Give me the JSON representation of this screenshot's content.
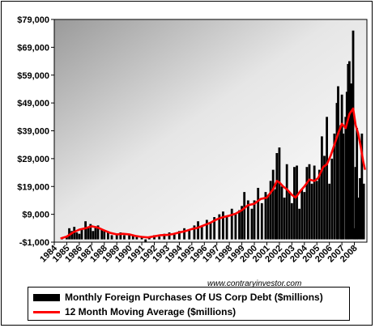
{
  "chart_data": {
    "type": "bar",
    "y_ticks": [
      "$79,000",
      "$69,000",
      "$59,000",
      "$49,000",
      "$39,000",
      "$29,000",
      "$19,000",
      "$9,000",
      "-$1,000"
    ],
    "ylim": [
      -1000,
      79000
    ],
    "x_ticks": [
      "1984",
      "1985",
      "1986",
      "1987",
      "1988",
      "1989",
      "1990",
      "1991",
      "1992",
      "1993",
      "1994",
      "1995",
      "1996",
      "1997",
      "1998",
      "1999",
      "2000",
      "2001",
      "2002",
      "2003",
      "2004",
      "2005",
      "2006",
      "2007",
      "2008"
    ],
    "xlim": [
      1984.0,
      2009.0
    ],
    "colors": {
      "bars": "#000000",
      "moving_average": "#ff0000"
    },
    "series": [
      {
        "name": "Monthly Foreign Purchases Of US Corp Debt ($millions)",
        "style": "bar",
        "points": [
          [
            1984.6,
            600
          ],
          [
            1985.0,
            1000
          ],
          [
            1985.2,
            4000
          ],
          [
            1985.4,
            3000
          ],
          [
            1985.6,
            4500
          ],
          [
            1985.8,
            2500
          ],
          [
            1986.0,
            2000
          ],
          [
            1986.2,
            3500
          ],
          [
            1986.5,
            6500
          ],
          [
            1986.7,
            4500
          ],
          [
            1986.9,
            5500
          ],
          [
            1987.1,
            3000
          ],
          [
            1987.3,
            4500
          ],
          [
            1987.5,
            5000
          ],
          [
            1987.8,
            3500
          ],
          [
            1988.0,
            3000
          ],
          [
            1988.3,
            2500
          ],
          [
            1988.6,
            1500
          ],
          [
            1989.0,
            2000
          ],
          [
            1989.3,
            2500
          ],
          [
            1989.6,
            1500
          ],
          [
            1990.0,
            2000
          ],
          [
            1990.3,
            1500
          ],
          [
            1990.6,
            1000
          ],
          [
            1991.0,
            1200
          ],
          [
            1991.3,
            -1000
          ],
          [
            1991.6,
            800
          ],
          [
            1992.0,
            1500
          ],
          [
            1992.4,
            1000
          ],
          [
            1992.8,
            2000
          ],
          [
            1993.2,
            2500
          ],
          [
            1993.6,
            2000
          ],
          [
            1994.0,
            3000
          ],
          [
            1994.4,
            4000
          ],
          [
            1994.8,
            3500
          ],
          [
            1995.2,
            5000
          ],
          [
            1995.5,
            6500
          ],
          [
            1995.8,
            4500
          ],
          [
            1996.2,
            7000
          ],
          [
            1996.5,
            6000
          ],
          [
            1996.8,
            8000
          ],
          [
            1997.2,
            9000
          ],
          [
            1997.5,
            10000
          ],
          [
            1997.8,
            8500
          ],
          [
            1998.2,
            11000
          ],
          [
            1998.5,
            9000
          ],
          [
            1998.8,
            10500
          ],
          [
            1999.0,
            12000
          ],
          [
            1999.2,
            17000
          ],
          [
            1999.5,
            14000
          ],
          [
            1999.8,
            11000
          ],
          [
            2000.0,
            14000
          ],
          [
            2000.3,
            18500
          ],
          [
            2000.6,
            13000
          ],
          [
            2000.9,
            17000
          ],
          [
            2001.1,
            16000
          ],
          [
            2001.3,
            21000
          ],
          [
            2001.5,
            25000
          ],
          [
            2001.7,
            18000
          ],
          [
            2001.8,
            31000
          ],
          [
            2002.0,
            33000
          ],
          [
            2002.2,
            19000
          ],
          [
            2002.4,
            15000
          ],
          [
            2002.6,
            27000
          ],
          [
            2002.8,
            17000
          ],
          [
            2003.0,
            13000
          ],
          [
            2003.2,
            26000
          ],
          [
            2003.4,
            26500
          ],
          [
            2003.6,
            11000
          ],
          [
            2003.8,
            18000
          ],
          [
            2004.0,
            17000
          ],
          [
            2004.2,
            26000
          ],
          [
            2004.4,
            27000
          ],
          [
            2004.6,
            20000
          ],
          [
            2004.8,
            26500
          ],
          [
            2005.0,
            21000
          ],
          [
            2005.2,
            25000
          ],
          [
            2005.4,
            37000
          ],
          [
            2005.6,
            30000
          ],
          [
            2005.8,
            44000
          ],
          [
            2006.0,
            20000
          ],
          [
            2006.2,
            29000
          ],
          [
            2006.4,
            38000
          ],
          [
            2006.6,
            49000
          ],
          [
            2006.7,
            55000
          ],
          [
            2006.9,
            41000
          ],
          [
            2007.0,
            52000
          ],
          [
            2007.1,
            38000
          ],
          [
            2007.3,
            44000
          ],
          [
            2007.4,
            53000
          ],
          [
            2007.5,
            63000
          ],
          [
            2007.6,
            64000
          ],
          [
            2007.75,
            56000
          ],
          [
            2007.9,
            75000
          ],
          [
            2008.0,
            4000
          ],
          [
            2008.1,
            26000
          ],
          [
            2008.2,
            40000
          ],
          [
            2008.3,
            15000
          ],
          [
            2008.45,
            22000
          ],
          [
            2008.6,
            38000
          ],
          [
            2008.75,
            20000
          ]
        ]
      },
      {
        "name": "12 Month Moving Average ($millions)",
        "style": "line",
        "points": [
          [
            1984.5,
            300
          ],
          [
            1985.0,
            1000
          ],
          [
            1985.5,
            2500
          ],
          [
            1986.0,
            3500
          ],
          [
            1986.5,
            4000
          ],
          [
            1987.0,
            4700
          ],
          [
            1987.5,
            4200
          ],
          [
            1988.0,
            3200
          ],
          [
            1988.5,
            2300
          ],
          [
            1989.0,
            1800
          ],
          [
            1989.5,
            2000
          ],
          [
            1990.0,
            1800
          ],
          [
            1990.5,
            1200
          ],
          [
            1991.0,
            900
          ],
          [
            1991.5,
            700
          ],
          [
            1992.0,
            1100
          ],
          [
            1992.5,
            1500
          ],
          [
            1993.0,
            1600
          ],
          [
            1993.5,
            1900
          ],
          [
            1994.0,
            2500
          ],
          [
            1994.5,
            3000
          ],
          [
            1995.0,
            3700
          ],
          [
            1995.5,
            4200
          ],
          [
            1996.0,
            5100
          ],
          [
            1996.5,
            6000
          ],
          [
            1997.0,
            7200
          ],
          [
            1997.5,
            8000
          ],
          [
            1998.0,
            8500
          ],
          [
            1998.5,
            9200
          ],
          [
            1999.0,
            10500
          ],
          [
            1999.5,
            12300
          ],
          [
            2000.0,
            12800
          ],
          [
            2000.5,
            14500
          ],
          [
            2001.0,
            15000
          ],
          [
            2001.5,
            18000
          ],
          [
            2001.8,
            21000
          ],
          [
            2002.0,
            20500
          ],
          [
            2002.3,
            19000
          ],
          [
            2002.6,
            18000
          ],
          [
            2003.0,
            16000
          ],
          [
            2003.3,
            15000
          ],
          [
            2003.7,
            17500
          ],
          [
            2004.0,
            19000
          ],
          [
            2004.4,
            21500
          ],
          [
            2004.8,
            21000
          ],
          [
            2005.1,
            22000
          ],
          [
            2005.5,
            26000
          ],
          [
            2005.8,
            27000
          ],
          [
            2006.1,
            30000
          ],
          [
            2006.4,
            34000
          ],
          [
            2006.7,
            38000
          ],
          [
            2007.0,
            41500
          ],
          [
            2007.3,
            40000
          ],
          [
            2007.6,
            45000
          ],
          [
            2007.9,
            47000
          ],
          [
            2008.1,
            41000
          ],
          [
            2008.3,
            38000
          ],
          [
            2008.5,
            33500
          ],
          [
            2008.7,
            28000
          ],
          [
            2008.85,
            25000
          ]
        ]
      }
    ]
  },
  "watermark": "www.contraryinvestor.com"
}
